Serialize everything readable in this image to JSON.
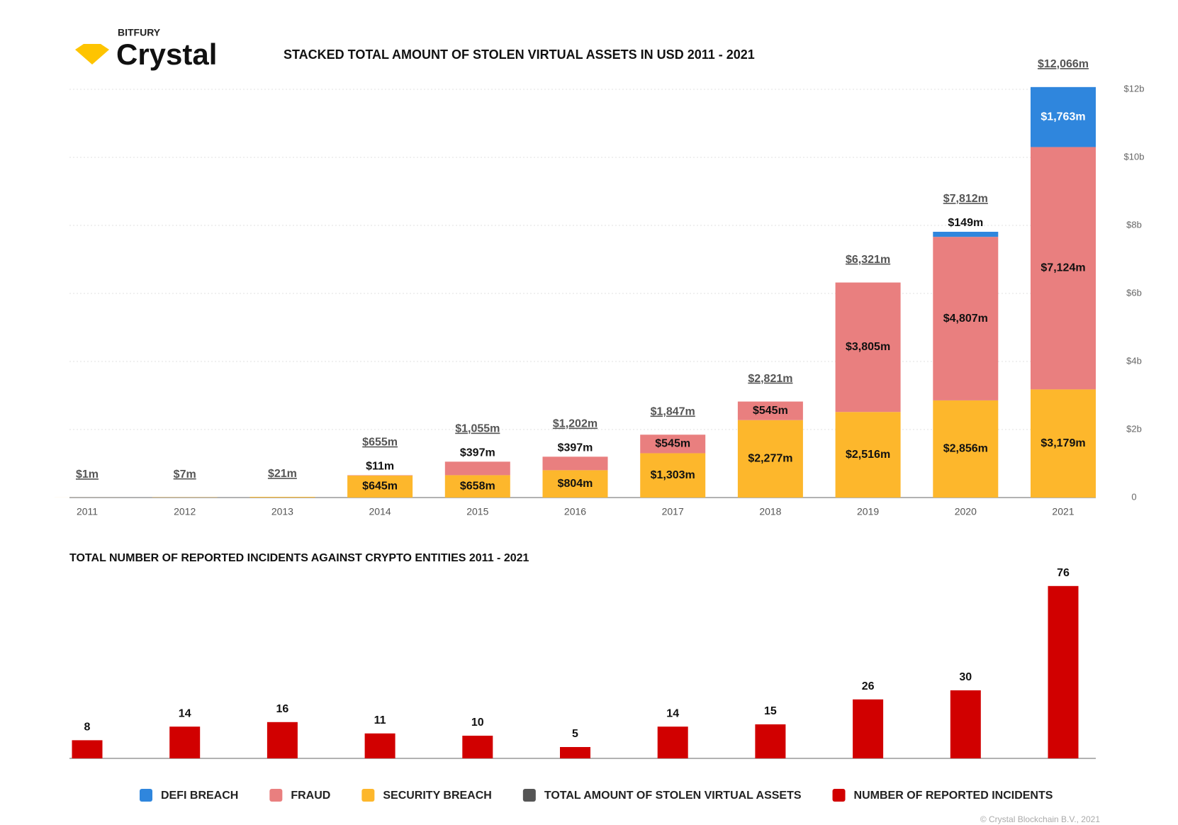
{
  "header": {
    "brand": "BITFURY",
    "logo": "Crystal"
  },
  "footer": "© Crystal Blockchain B.V., 2021",
  "chart_data": [
    {
      "type": "stacked_bar",
      "title": "STACKED TOTAL AMOUNT OF STOLEN VIRTUAL ASSETS IN USD 2011 - 2021",
      "categories": [
        "2011",
        "2012",
        "2013",
        "2014",
        "2015",
        "2016",
        "2017",
        "2018",
        "2019",
        "2020",
        "2021"
      ],
      "series": [
        {
          "name": "SECURITY BREACH",
          "color": "#fdb72c",
          "values": [
            1,
            7,
            21,
            645,
            658,
            804,
            1303,
            2277,
            2516,
            2856,
            3179
          ],
          "value_labels": [
            null,
            null,
            null,
            "$645m",
            "$658m",
            "$804m",
            "$1,303m",
            "$2,277m",
            "$2,516m",
            "$2,856m",
            "$3,179m"
          ]
        },
        {
          "name": "FRAUD",
          "color": "#e97f7f",
          "values": [
            null,
            null,
            null,
            11,
            397,
            397,
            545,
            545,
            3805,
            4807,
            7124
          ],
          "value_labels": [
            null,
            null,
            null,
            "$11m",
            "$397m",
            "$397m",
            "$545m",
            "$545m",
            "$3,805m",
            "$4,807m",
            "$7,124m"
          ]
        },
        {
          "name": "DEFI BREACH",
          "color": "#2f86dd",
          "values": [
            null,
            null,
            null,
            null,
            null,
            null,
            null,
            null,
            null,
            149,
            1763
          ],
          "value_labels": [
            null,
            null,
            null,
            null,
            null,
            null,
            null,
            null,
            null,
            "$149m",
            "$1,763m"
          ]
        }
      ],
      "totals": {
        "name": "TOTAL AMOUNT OF STOLEN VIRTUAL ASSETS",
        "color": "#555555",
        "values": [
          1,
          7,
          21,
          655,
          1055,
          1202,
          1847,
          2821,
          6321,
          7812,
          12066
        ],
        "value_labels": [
          "$1m",
          "$7m",
          "$21m",
          "$655m",
          "$1,055m",
          "$1,202m",
          "$1,847m",
          "$2,821m",
          "$6,321m",
          "$7,812m",
          "$12,066m"
        ]
      },
      "ylim": [
        0,
        12000
      ],
      "yticks": [
        0,
        {
          "value": 2000,
          "label": "$2b"
        },
        {
          "value": 4000,
          "label": "$4b"
        },
        {
          "value": 6000,
          "label": "$6b"
        },
        {
          "value": 8000,
          "label": "$8b"
        },
        {
          "value": 10000,
          "label": "$10b"
        },
        {
          "value": 12000,
          "label": "$12b"
        }
      ],
      "grid": true
    },
    {
      "type": "bar",
      "title": "TOTAL NUMBER OF REPORTED INCIDENTS AGAINST CRYPTO ENTITIES 2011 - 2021",
      "series": [
        {
          "name": "NUMBER OF REPORTED INCIDENTS",
          "color": "#d10000",
          "values": [
            8,
            14,
            16,
            11,
            10,
            5,
            14,
            15,
            26,
            30,
            76
          ]
        }
      ],
      "ylim": [
        0,
        80
      ]
    }
  ]
}
